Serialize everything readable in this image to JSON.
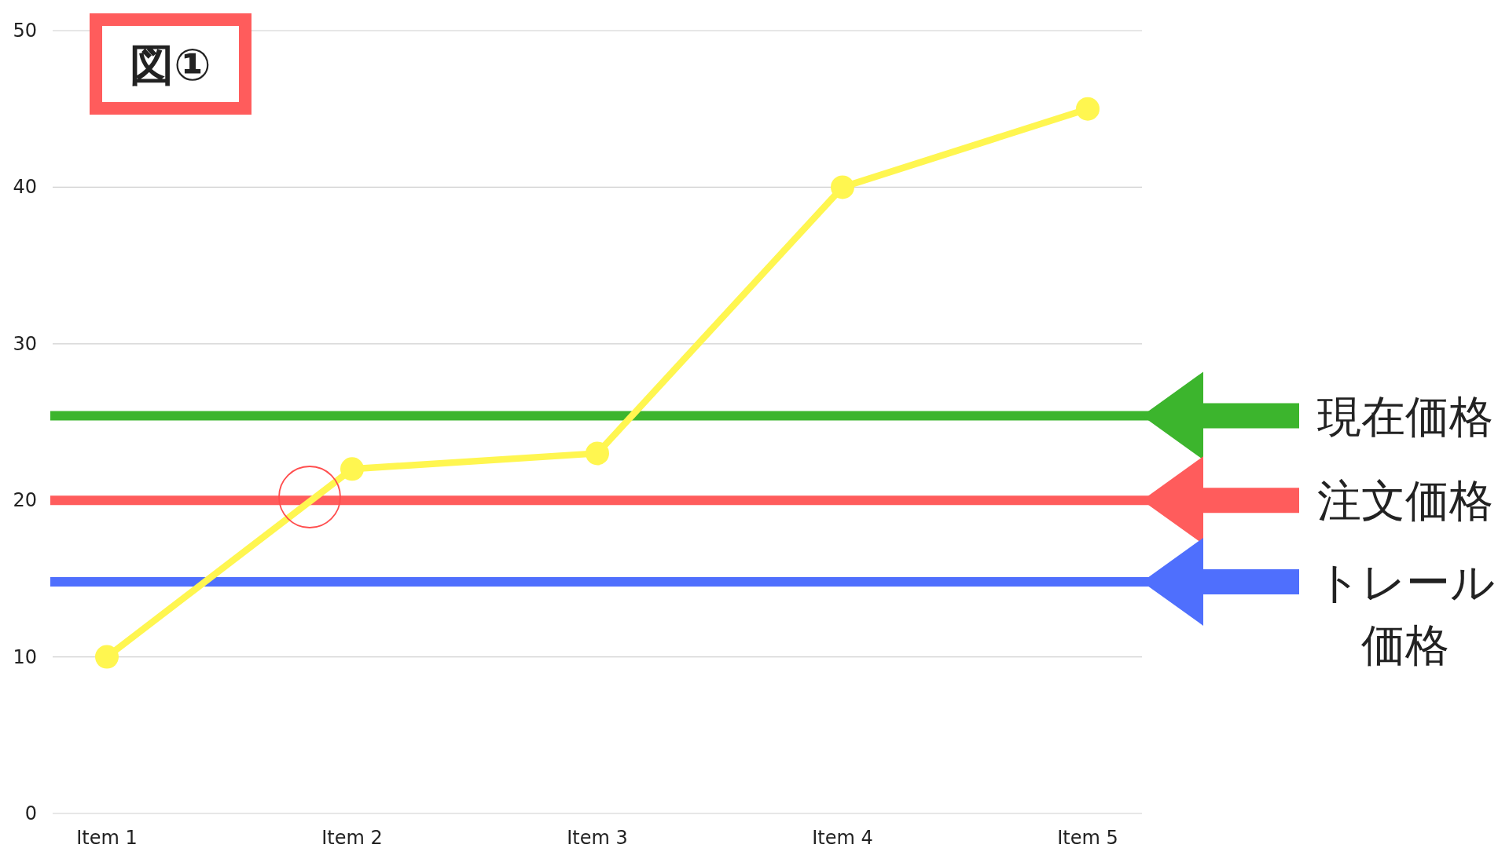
{
  "chart_data": {
    "type": "line",
    "title": "図①",
    "categories": [
      "Item 1",
      "Item 2",
      "Item 3",
      "Item 4",
      "Item 5"
    ],
    "series": [
      {
        "color": "#fff650",
        "values": [
          10,
          22,
          23,
          40,
          45
        ]
      }
    ],
    "ylim": [
      0,
      50
    ],
    "yticks": [
      0,
      10,
      20,
      30,
      40,
      50
    ],
    "grid": "y",
    "marker": "circle",
    "line_style": "solid",
    "ref_lines": [
      {
        "axis": "y",
        "value": 25.4,
        "label": "現在価格",
        "color": "#3cb52d"
      },
      {
        "axis": "y",
        "value": 20,
        "label": "注文価格",
        "color": "#ff5c5c"
      },
      {
        "axis": "y",
        "value": 14.8,
        "label": "トレール価格",
        "color": "#4f6ffd"
      }
    ]
  }
}
